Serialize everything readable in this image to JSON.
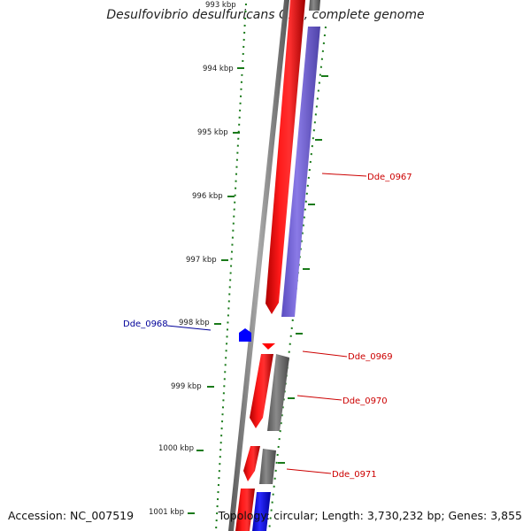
{
  "title": "Desulfovibrio desulfuricans G20, complete genome",
  "footer": {
    "accession": "Accession: NC_007519",
    "topology": "Topology: circular; Length: 3,730,232 bp; Genes: 3,855"
  },
  "ruler": {
    "unit": "kbp",
    "ticks": [
      "993 kbp",
      "994 kbp",
      "995 kbp",
      "996 kbp",
      "997 kbp",
      "998 kbp",
      "999 kbp",
      "1000 kbp",
      "1001 kbp"
    ]
  },
  "gene_labels": [
    {
      "name": "Dde_0967",
      "color": "#cc0000"
    },
    {
      "name": "Dde_0968",
      "color": "#000099"
    },
    {
      "name": "Dde_0969",
      "color": "#cc0000"
    },
    {
      "name": "Dde_0970",
      "color": "#cc0000"
    },
    {
      "name": "Dde_0971",
      "color": "#cc0000"
    }
  ],
  "colors": {
    "forward_gene": "#ff0000",
    "reverse_gene_blue": "#0000ff",
    "gene_purple": "#7b68d6",
    "gene_gray": "#707070",
    "backbone": "#808080",
    "ruler": "#1a7a1a"
  }
}
